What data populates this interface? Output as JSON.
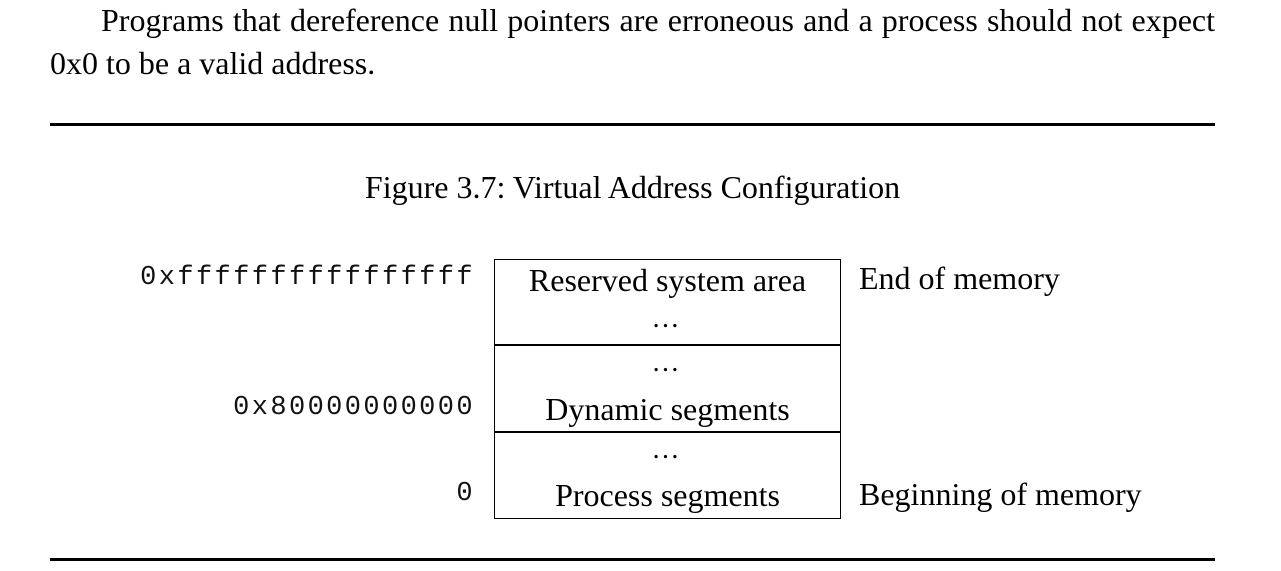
{
  "paragraph": "Programs that dereference null pointers are erroneous and a process should not expect 0x0 to be a valid address.",
  "figure": {
    "caption": "Figure 3.7: Virtual Address Configuration",
    "addresses": {
      "top": "0xffffffffffffffff",
      "middle": "0x80000000000",
      "bottom": "0"
    },
    "segments": {
      "reserved": "Reserved system area",
      "dynamic": "Dynamic segments",
      "process": "Process segments",
      "ellipsis": "…"
    },
    "side_labels": {
      "end": "End of memory",
      "beginning": "Beginning of memory"
    }
  }
}
